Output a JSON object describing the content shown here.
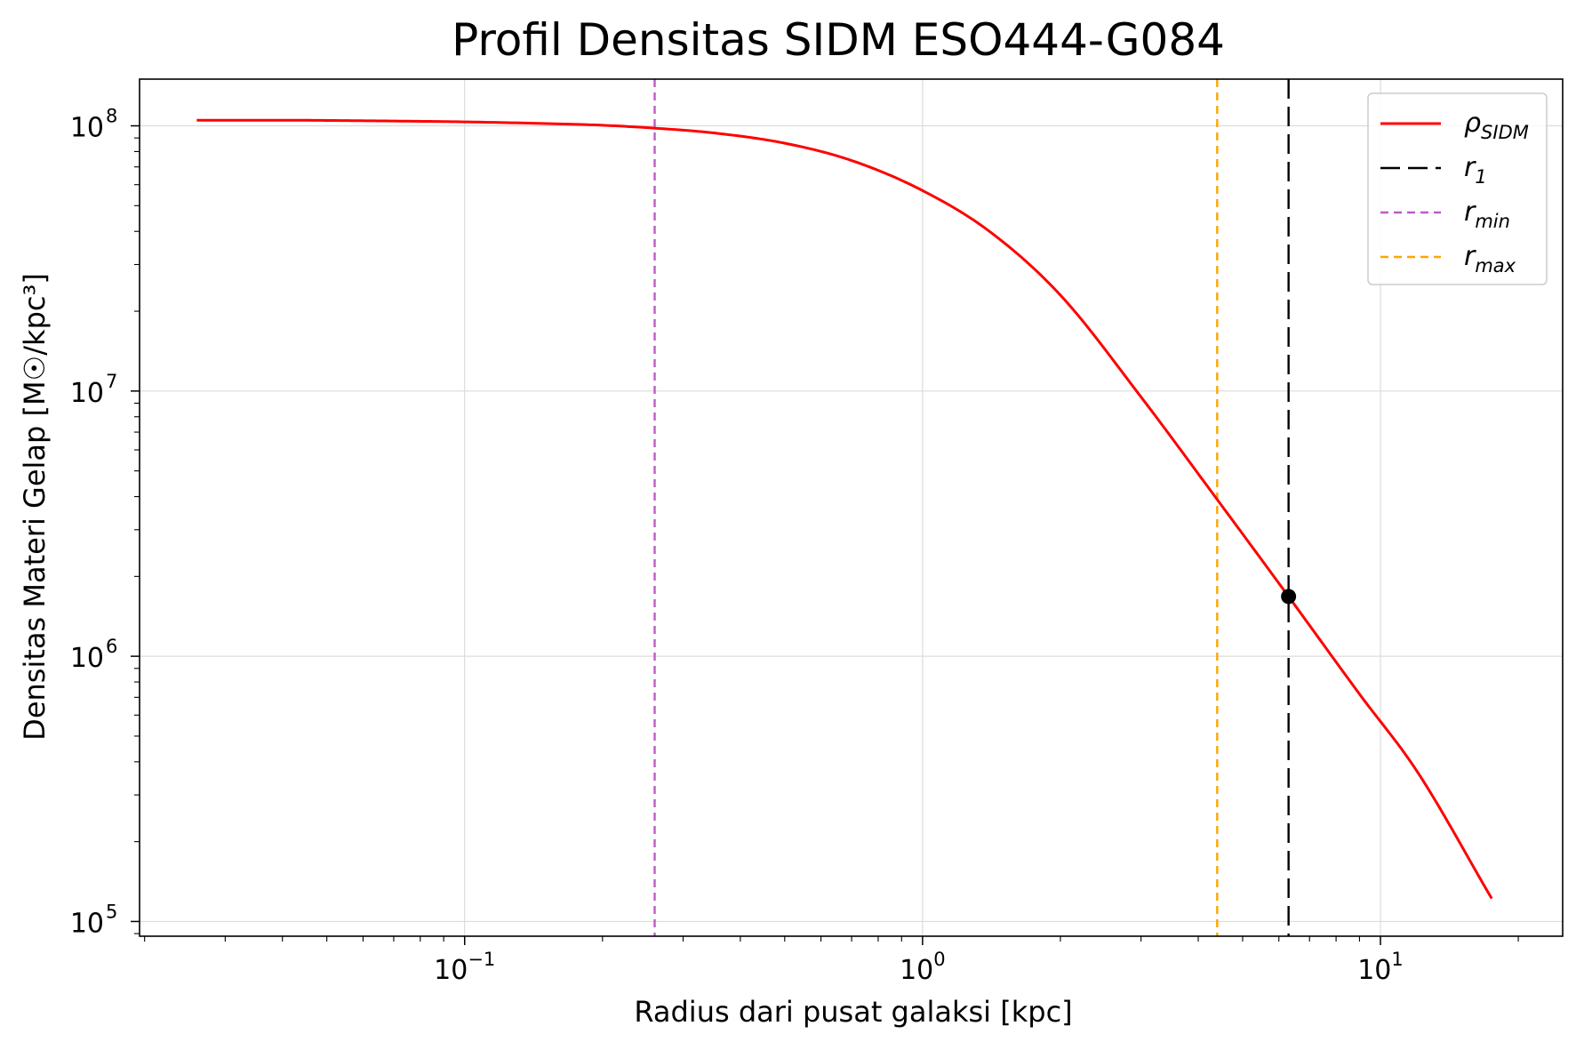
{
  "chart_data": {
    "type": "line",
    "title": "Profil Densitas SIDM ESO444-G084",
    "xlabel": "Radius dari pusat galaksi [kpc]",
    "ylabel": "Densitas Materi Gelap [M☉/kpc³]",
    "xscale": "log",
    "yscale": "log",
    "xlim": [
      0.0195,
      25
    ],
    "ylim": [
      88000,
      150000000
    ],
    "grid": true,
    "legend_position": "top-right",
    "x_ticks": [
      {
        "base": "10",
        "exp": "−1",
        "value": 0.1
      },
      {
        "base": "10",
        "exp": "0",
        "value": 1
      },
      {
        "base": "10",
        "exp": "1",
        "value": 10
      }
    ],
    "y_ticks": [
      {
        "base": "10",
        "exp": "5",
        "value": 100000
      },
      {
        "base": "10",
        "exp": "6",
        "value": 1000000
      },
      {
        "base": "10",
        "exp": "7",
        "value": 10000000
      },
      {
        "base": "10",
        "exp": "8",
        "value": 100000000
      }
    ],
    "series": [
      {
        "name": "ρSIDM",
        "color": "#ff0000",
        "style": "solid",
        "x": [
          0.026,
          0.04,
          0.06,
          0.1,
          0.15,
          0.2,
          0.26,
          0.35,
          0.5,
          0.7,
          1.0,
          1.4,
          2.0,
          3.0,
          4.4,
          6.3,
          9.0,
          12.0,
          17.5
        ],
        "y": [
          105000000,
          105000000,
          104500000,
          103500000,
          102000000,
          100500000,
          98000000,
          94000000,
          86000000,
          74000000,
          57000000,
          40000000,
          23000000,
          9500000,
          3900000,
          1680000,
          720000,
          370000,
          122000
        ]
      }
    ],
    "vlines": [
      {
        "name": "r1",
        "label_base": "r",
        "label_sub": "1",
        "x": 6.3,
        "color": "#000000",
        "dash": "22,9"
      },
      {
        "name": "rmin",
        "label_base": "r",
        "label_sub": "min",
        "x": 0.26,
        "color": "#bf5ac8",
        "dash": "9,6"
      },
      {
        "name": "rmax",
        "label_base": "r",
        "label_sub": "max",
        "x": 4.4,
        "color": "#ffa500",
        "dash": "9,6"
      }
    ],
    "marker": {
      "x": 6.3,
      "y": 1680000,
      "color": "#000000"
    },
    "legend": [
      {
        "base": "ρ",
        "sub": "SIDM",
        "color": "#ff0000",
        "dash": ""
      },
      {
        "base": "r",
        "sub": "1",
        "color": "#000000",
        "dash": "22,9"
      },
      {
        "base": "r",
        "sub": "min",
        "color": "#bf5ac8",
        "dash": "9,6"
      },
      {
        "base": "r",
        "sub": "max",
        "color": "#ffa500",
        "dash": "9,6"
      }
    ]
  }
}
